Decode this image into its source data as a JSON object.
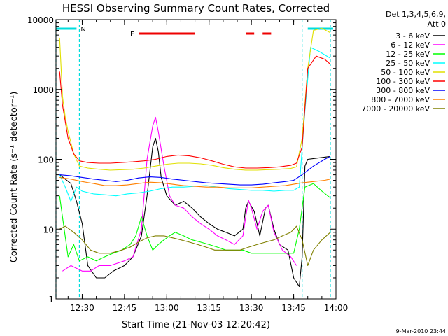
{
  "chart_data": {
    "type": "line",
    "title": "HESSI Observing Summary Count Rates, Corrected",
    "xlabel": "Start Time (21-Nov-03 12:20:42)",
    "ylabel": "Corrected Count Rate (s⁻¹ detector⁻¹)",
    "x_ticks": [
      "12:30",
      "12:45",
      "13:00",
      "13:15",
      "13:30",
      "13:45",
      "14:00"
    ],
    "y_ticks": [
      "1",
      "10",
      "100",
      "1000",
      "10000"
    ],
    "xlim": [
      "12:20:42",
      "14:00"
    ],
    "ylim": [
      1,
      10000
    ],
    "yscale": "log",
    "grid": false,
    "legend_position": "right",
    "legend_header": [
      "Det 1,3,4,5,6,9,",
      "Att 0"
    ],
    "footer_date": "9-Mar-2010 23:44",
    "annotations": {
      "night_label": "N",
      "flare_label": "F",
      "night_bars": [
        [
          "12:20:42",
          "12:28"
        ],
        [
          "13:50",
          "13:59"
        ]
      ],
      "night_lines": [
        "12:20:42",
        "12:29",
        "13:48",
        "13:58"
      ],
      "flare_bars": [
        [
          "12:50",
          "13:10"
        ],
        [
          "13:28",
          "13:31"
        ],
        [
          "13:34",
          "13:37"
        ]
      ]
    },
    "series": [
      {
        "name": "3 - 6 keV",
        "color": "#000000",
        "points": [
          [
            "12:22",
            60
          ],
          [
            "12:26",
            45
          ],
          [
            "12:28",
            25
          ],
          [
            "12:30",
            12
          ],
          [
            "12:32",
            3
          ],
          [
            "12:35",
            2
          ],
          [
            "12:38",
            2
          ],
          [
            "12:41",
            2.5
          ],
          [
            "12:45",
            3
          ],
          [
            "12:48",
            4
          ],
          [
            "12:51",
            8
          ],
          [
            "12:53",
            30
          ],
          [
            "12:55",
            150
          ],
          [
            "12:56",
            200
          ],
          [
            "12:57",
            130
          ],
          [
            "12:58",
            55
          ],
          [
            "13:00",
            30
          ],
          [
            "13:03",
            22
          ],
          [
            "13:06",
            25
          ],
          [
            "13:09",
            20
          ],
          [
            "13:12",
            15
          ],
          [
            "13:15",
            12
          ],
          [
            "13:18",
            10
          ],
          [
            "13:21",
            9
          ],
          [
            "13:24",
            8
          ],
          [
            "13:27",
            10
          ],
          [
            "13:28",
            20
          ],
          [
            "13:29",
            25
          ],
          [
            "13:31",
            18
          ],
          [
            "13:33",
            8
          ],
          [
            "13:35",
            20
          ],
          [
            "13:36",
            22
          ],
          [
            "13:38",
            10
          ],
          [
            "13:40",
            6
          ],
          [
            "13:43",
            5
          ],
          [
            "13:45",
            2
          ],
          [
            "13:47",
            1.5
          ],
          [
            "13:48",
            4
          ],
          [
            "13:49",
            80
          ],
          [
            "13:50",
            100
          ],
          [
            "13:54",
            105
          ],
          [
            "13:58",
            110
          ]
        ]
      },
      {
        "name": "6 - 12 keV",
        "color": "#ff00ff",
        "points": [
          [
            "12:23",
            2.5
          ],
          [
            "12:26",
            3
          ],
          [
            "12:30",
            2.5
          ],
          [
            "12:33",
            2.5
          ],
          [
            "12:36",
            3
          ],
          [
            "12:40",
            3
          ],
          [
            "12:45",
            3.5
          ],
          [
            "12:48",
            4
          ],
          [
            "12:51",
            10
          ],
          [
            "12:53",
            100
          ],
          [
            "12:55",
            300
          ],
          [
            "12:56",
            400
          ],
          [
            "12:57",
            250
          ],
          [
            "12:59",
            80
          ],
          [
            "13:01",
            30
          ],
          [
            "13:03",
            22
          ],
          [
            "13:06",
            20
          ],
          [
            "13:09",
            15
          ],
          [
            "13:12",
            12
          ],
          [
            "13:15",
            10
          ],
          [
            "13:18",
            8
          ],
          [
            "13:21",
            7
          ],
          [
            "13:24",
            6
          ],
          [
            "13:27",
            8
          ],
          [
            "13:28",
            15
          ],
          [
            "13:29",
            26
          ],
          [
            "13:30",
            20
          ],
          [
            "13:32",
            10
          ],
          [
            "13:34",
            18
          ],
          [
            "13:36",
            22
          ],
          [
            "13:38",
            9
          ],
          [
            "13:41",
            5
          ],
          [
            "13:44",
            4
          ],
          [
            "13:46",
            3
          ]
        ]
      },
      {
        "name": "12 - 25 keV",
        "color": "#00ff00",
        "points": [
          [
            "12:22",
            30
          ],
          [
            "12:23",
            15
          ],
          [
            "12:25",
            4
          ],
          [
            "12:27",
            6
          ],
          [
            "12:29",
            3.5
          ],
          [
            "12:32",
            4
          ],
          [
            "12:35",
            3.5
          ],
          [
            "12:38",
            4
          ],
          [
            "12:41",
            4.5
          ],
          [
            "12:44",
            5
          ],
          [
            "12:47",
            6
          ],
          [
            "12:49",
            8
          ],
          [
            "12:51",
            15
          ],
          [
            "12:53",
            8
          ],
          [
            "12:55",
            5
          ],
          [
            "12:57",
            6
          ],
          [
            "12:59",
            7
          ],
          [
            "13:01",
            8
          ],
          [
            "13:03",
            9
          ],
          [
            "13:06",
            8
          ],
          [
            "13:09",
            7
          ],
          [
            "13:12",
            6.5
          ],
          [
            "13:15",
            6
          ],
          [
            "13:18",
            5.5
          ],
          [
            "13:21",
            5
          ],
          [
            "13:24",
            5
          ],
          [
            "13:27",
            5
          ],
          [
            "13:30",
            4.5
          ],
          [
            "13:33",
            4.5
          ],
          [
            "13:36",
            4.5
          ],
          [
            "13:39",
            4.5
          ],
          [
            "13:42",
            4.5
          ],
          [
            "13:45",
            4.5
          ],
          [
            "13:47",
            10
          ],
          [
            "13:49",
            40
          ],
          [
            "13:52",
            45
          ],
          [
            "13:55",
            35
          ],
          [
            "13:58",
            28
          ]
        ]
      },
      {
        "name": "25 - 50 keV",
        "color": "#00ffff",
        "points": [
          [
            "12:22",
            60
          ],
          [
            "12:24",
            40
          ],
          [
            "12:26",
            25
          ],
          [
            "12:28",
            40
          ],
          [
            "12:30",
            35
          ],
          [
            "12:34",
            32
          ],
          [
            "12:38",
            31
          ],
          [
            "12:42",
            30
          ],
          [
            "12:46",
            32
          ],
          [
            "12:50",
            33
          ],
          [
            "12:54",
            35
          ],
          [
            "12:58",
            38
          ],
          [
            "13:02",
            40
          ],
          [
            "13:06",
            40
          ],
          [
            "13:10",
            41
          ],
          [
            "13:14",
            42
          ],
          [
            "13:18",
            40
          ],
          [
            "13:22",
            38
          ],
          [
            "13:26",
            37
          ],
          [
            "13:30",
            36
          ],
          [
            "13:34",
            36
          ],
          [
            "13:38",
            35
          ],
          [
            "13:42",
            36
          ],
          [
            "13:45",
            36
          ],
          [
            "13:47",
            40
          ],
          [
            "13:49",
            500
          ],
          [
            "13:51",
            4000
          ],
          [
            "13:54",
            3500
          ],
          [
            "13:58",
            2800
          ]
        ]
      },
      {
        "name": "50 - 100 keV",
        "color": "#e0e000",
        "points": [
          [
            "12:22",
            5500
          ],
          [
            "12:23",
            800
          ],
          [
            "12:24",
            400
          ],
          [
            "12:25",
            250
          ],
          [
            "12:27",
            120
          ],
          [
            "12:29",
            80
          ],
          [
            "12:32",
            75
          ],
          [
            "12:36",
            72
          ],
          [
            "12:40",
            70
          ],
          [
            "12:44",
            71
          ],
          [
            "12:48",
            72
          ],
          [
            "12:52",
            75
          ],
          [
            "12:56",
            80
          ],
          [
            "13:00",
            85
          ],
          [
            "13:04",
            88
          ],
          [
            "13:08",
            88
          ],
          [
            "13:12",
            86
          ],
          [
            "13:16",
            82
          ],
          [
            "13:20",
            76
          ],
          [
            "13:24",
            72
          ],
          [
            "13:28",
            70
          ],
          [
            "13:32",
            70
          ],
          [
            "13:36",
            71
          ],
          [
            "13:40",
            72
          ],
          [
            "13:44",
            74
          ],
          [
            "13:46",
            78
          ],
          [
            "13:48",
            200
          ],
          [
            "13:50",
            2000
          ],
          [
            "13:52",
            7000
          ],
          [
            "13:55",
            7500
          ],
          [
            "13:58",
            6500
          ]
        ]
      },
      {
        "name": "100 - 300 keV",
        "color": "#ff0000",
        "points": [
          [
            "12:22",
            1800
          ],
          [
            "12:23",
            600
          ],
          [
            "12:25",
            200
          ],
          [
            "12:27",
            120
          ],
          [
            "12:29",
            95
          ],
          [
            "12:32",
            90
          ],
          [
            "12:36",
            88
          ],
          [
            "12:40",
            88
          ],
          [
            "12:44",
            90
          ],
          [
            "12:48",
            92
          ],
          [
            "12:52",
            95
          ],
          [
            "12:56",
            100
          ],
          [
            "13:00",
            110
          ],
          [
            "13:04",
            115
          ],
          [
            "13:08",
            112
          ],
          [
            "13:12",
            105
          ],
          [
            "13:16",
            95
          ],
          [
            "13:20",
            85
          ],
          [
            "13:24",
            78
          ],
          [
            "13:28",
            75
          ],
          [
            "13:32",
            75
          ],
          [
            "13:36",
            76
          ],
          [
            "13:40",
            78
          ],
          [
            "13:44",
            82
          ],
          [
            "13:46",
            88
          ],
          [
            "13:48",
            150
          ],
          [
            "13:50",
            2000
          ],
          [
            "13:53",
            3000
          ],
          [
            "13:56",
            2700
          ],
          [
            "13:58",
            2300
          ]
        ]
      },
      {
        "name": "300 - 800 keV",
        "color": "#0000ff",
        "points": [
          [
            "12:22",
            60
          ],
          [
            "12:26",
            58
          ],
          [
            "12:30",
            55
          ],
          [
            "12:34",
            52
          ],
          [
            "12:38",
            50
          ],
          [
            "12:42",
            48
          ],
          [
            "12:46",
            50
          ],
          [
            "12:50",
            54
          ],
          [
            "12:54",
            56
          ],
          [
            "12:58",
            55
          ],
          [
            "13:02",
            52
          ],
          [
            "13:06",
            50
          ],
          [
            "13:10",
            48
          ],
          [
            "13:14",
            46
          ],
          [
            "13:18",
            45
          ],
          [
            "13:22",
            44
          ],
          [
            "13:26",
            43
          ],
          [
            "13:30",
            43
          ],
          [
            "13:34",
            44
          ],
          [
            "13:38",
            46
          ],
          [
            "13:42",
            48
          ],
          [
            "13:45",
            50
          ],
          [
            "13:48",
            60
          ],
          [
            "13:52",
            80
          ],
          [
            "13:56",
            100
          ],
          [
            "13:58",
            110
          ]
        ]
      },
      {
        "name": "800 - 7000 keV",
        "color": "#ff8000",
        "points": [
          [
            "12:22",
            55
          ],
          [
            "12:26",
            52
          ],
          [
            "12:30",
            48
          ],
          [
            "12:34",
            45
          ],
          [
            "12:38",
            42
          ],
          [
            "12:42",
            42
          ],
          [
            "12:46",
            43
          ],
          [
            "12:50",
            45
          ],
          [
            "12:54",
            47
          ],
          [
            "12:58",
            46
          ],
          [
            "13:02",
            44
          ],
          [
            "13:06",
            42
          ],
          [
            "13:10",
            41
          ],
          [
            "13:14",
            40
          ],
          [
            "13:18",
            40
          ],
          [
            "13:22",
            39
          ],
          [
            "13:26",
            39
          ],
          [
            "13:30",
            39
          ],
          [
            "13:34",
            40
          ],
          [
            "13:38",
            41
          ],
          [
            "13:42",
            42
          ],
          [
            "13:45",
            44
          ],
          [
            "13:48",
            46
          ],
          [
            "13:52",
            48
          ],
          [
            "13:56",
            50
          ],
          [
            "13:58",
            52
          ]
        ]
      },
      {
        "name": "7000 - 20000 keV",
        "color": "#808000",
        "points": [
          [
            "12:22",
            10
          ],
          [
            "12:24",
            11
          ],
          [
            "12:27",
            9
          ],
          [
            "12:30",
            7
          ],
          [
            "12:33",
            5
          ],
          [
            "12:36",
            4.5
          ],
          [
            "12:40",
            4.5
          ],
          [
            "12:44",
            5
          ],
          [
            "12:47",
            5.5
          ],
          [
            "12:50",
            6.5
          ],
          [
            "12:53",
            7.5
          ],
          [
            "12:56",
            8
          ],
          [
            "12:59",
            8
          ],
          [
            "13:02",
            7.5
          ],
          [
            "13:05",
            7
          ],
          [
            "13:08",
            6.5
          ],
          [
            "13:11",
            6
          ],
          [
            "13:14",
            5.5
          ],
          [
            "13:17",
            5
          ],
          [
            "13:20",
            5
          ],
          [
            "13:23",
            5
          ],
          [
            "13:26",
            5
          ],
          [
            "13:29",
            5.5
          ],
          [
            "13:32",
            6
          ],
          [
            "13:35",
            6.5
          ],
          [
            "13:38",
            7
          ],
          [
            "13:41",
            8
          ],
          [
            "13:44",
            9
          ],
          [
            "13:46",
            11
          ],
          [
            "13:48",
            7
          ],
          [
            "13:50",
            3
          ],
          [
            "13:52",
            5
          ],
          [
            "13:55",
            7
          ],
          [
            "13:58",
            9
          ]
        ]
      }
    ]
  }
}
